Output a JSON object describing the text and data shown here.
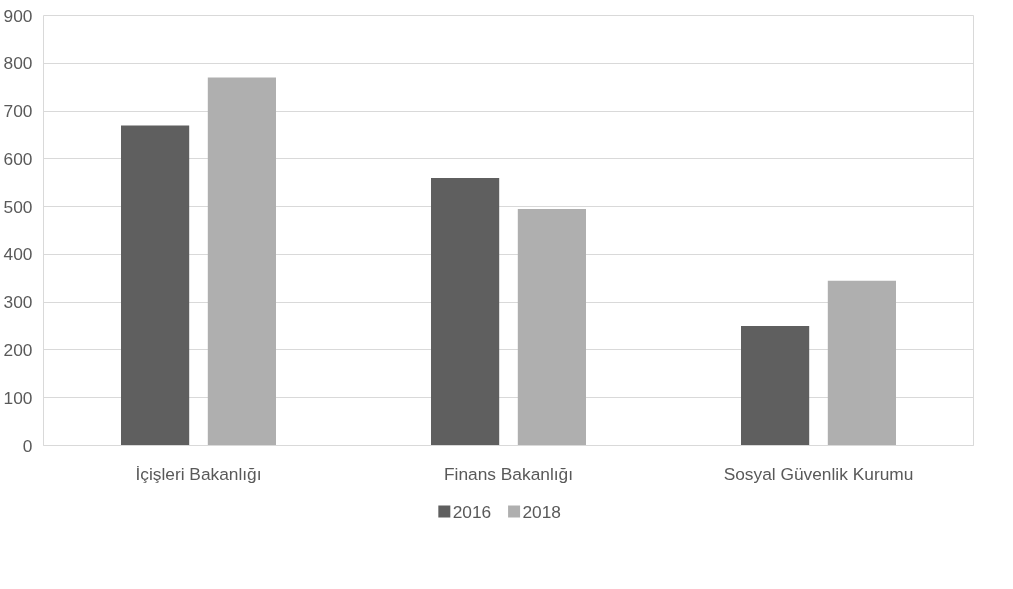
{
  "chart_data": {
    "type": "bar",
    "categories": [
      "İçişleri Bakanlığı",
      "Finans Bakanlığı",
      "Sosyal Güvenlik Kurumu"
    ],
    "series": [
      {
        "name": "2016",
        "color": "#5f5f5f",
        "values": [
          670,
          560,
          250
        ]
      },
      {
        "name": "2018",
        "color": "#afafaf",
        "values": [
          770,
          495,
          345
        ]
      }
    ],
    "ylim": [
      0,
      900
    ],
    "yticks": [
      0,
      100,
      200,
      300,
      400,
      500,
      600,
      700,
      800,
      900
    ],
    "grid": "y",
    "legend": "bottom"
  }
}
